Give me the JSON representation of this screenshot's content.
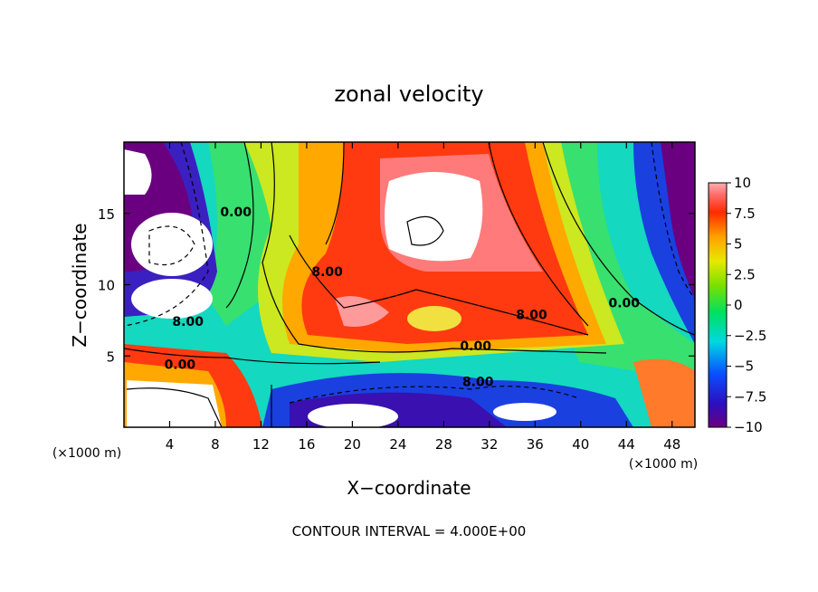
{
  "chart_data": {
    "type": "heatmap",
    "title": "zonal velocity",
    "xlabel": "X−coordinate",
    "ylabel": "Z−coordinate",
    "x_unit_note": "(×1000 m)",
    "z_unit_note": "(×1000 m)",
    "xlim": [
      0,
      50
    ],
    "ylim": [
      0,
      20
    ],
    "x_ticks": [
      4,
      8,
      12,
      16,
      20,
      24,
      28,
      32,
      36,
      40,
      44,
      48
    ],
    "y_ticks": [
      5,
      10,
      15
    ],
    "colorbar": {
      "range": [
        -10,
        10
      ],
      "tick_values": [
        10,
        7.5,
        5,
        2.5,
        0,
        -2.5,
        -5,
        -7.5,
        -10
      ],
      "tick_labels": [
        "10",
        "7.5",
        "5",
        "2.5",
        "0",
        "−2.5",
        "−5",
        "−7.5",
        "−10"
      ]
    },
    "contour_labels": [
      {
        "text": "0.00",
        "x": 9.8,
        "z": 14.8
      },
      {
        "text": "8.00",
        "x": 17.8,
        "z": 10.6
      },
      {
        "text": "8.00",
        "x": 35.7,
        "z": 7.6
      },
      {
        "text": "0.00",
        "x": 43.8,
        "z": 8.4
      },
      {
        "text": "8.00",
        "x": 5.6,
        "z": 7.1
      },
      {
        "text": "0.00",
        "x": 4.9,
        "z": 4.1
      },
      {
        "text": "0.00",
        "x": 30.8,
        "z": 5.4
      },
      {
        "text": "8.00",
        "x": 31.0,
        "z": 2.9
      }
    ],
    "footnote": "CONTOUR INTERVAL = 4.000E+00"
  }
}
